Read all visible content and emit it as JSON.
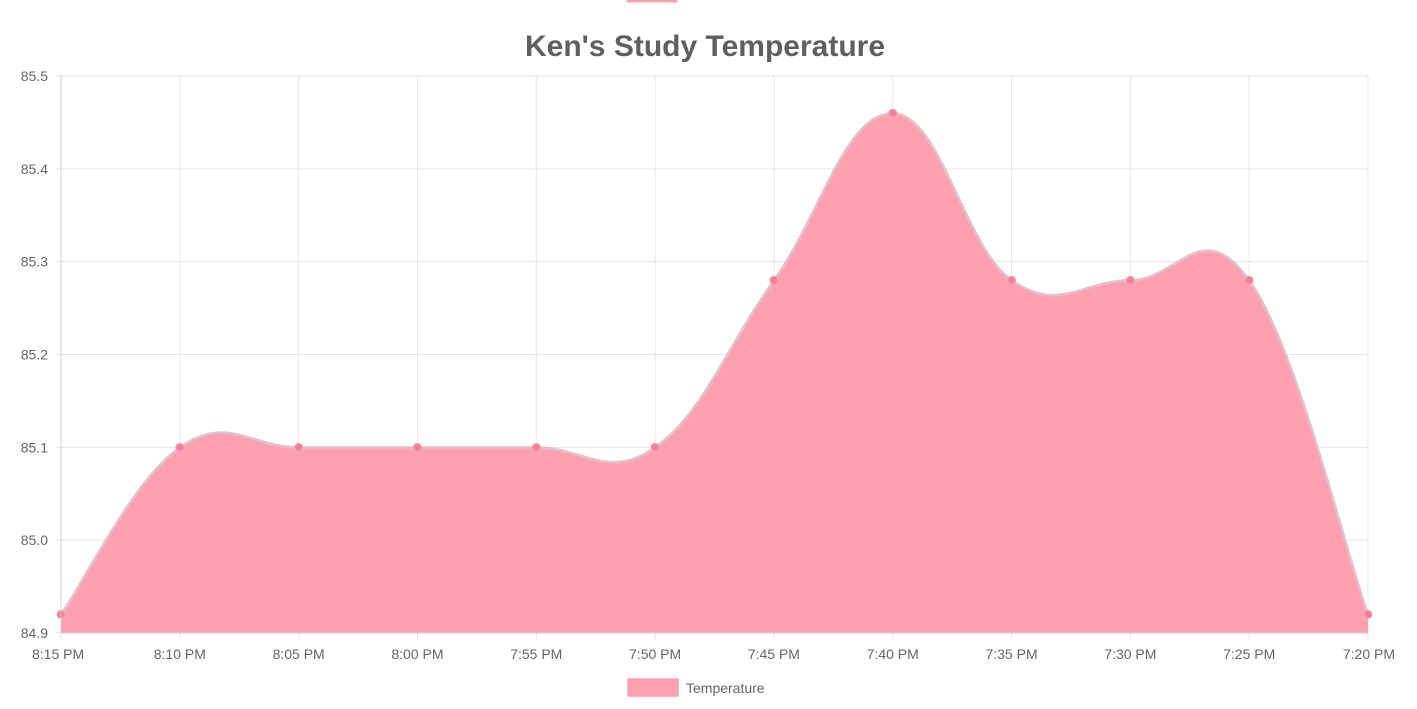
{
  "chart_data": {
    "type": "area",
    "title": "Ken's Study Temperature",
    "xlabel": "",
    "ylabel": "",
    "categories": [
      "8:15 PM",
      "8:10 PM",
      "8:05 PM",
      "8:00 PM",
      "7:55 PM",
      "7:50 PM",
      "7:45 PM",
      "7:40 PM",
      "7:35 PM",
      "7:30 PM",
      "7:25 PM",
      "7:20 PM"
    ],
    "series": [
      {
        "name": "Temperature",
        "values": [
          84.92,
          85.1,
          85.1,
          85.1,
          85.1,
          85.1,
          85.28,
          85.46,
          85.28,
          85.28,
          85.28,
          84.92
        ]
      }
    ],
    "ylim": [
      84.9,
      85.5
    ],
    "yticks": [
      "85.5",
      "85.4",
      "85.3",
      "85.2",
      "85.1",
      "85.0",
      "84.9"
    ],
    "grid": true,
    "legend_position": "bottom",
    "colors": {
      "fill": "#fe9fb2",
      "line": "#e0c4c9",
      "point": "#f0819a",
      "grid": "#e6e6e6",
      "text": "#666666",
      "title": "#5f5f5f"
    }
  }
}
